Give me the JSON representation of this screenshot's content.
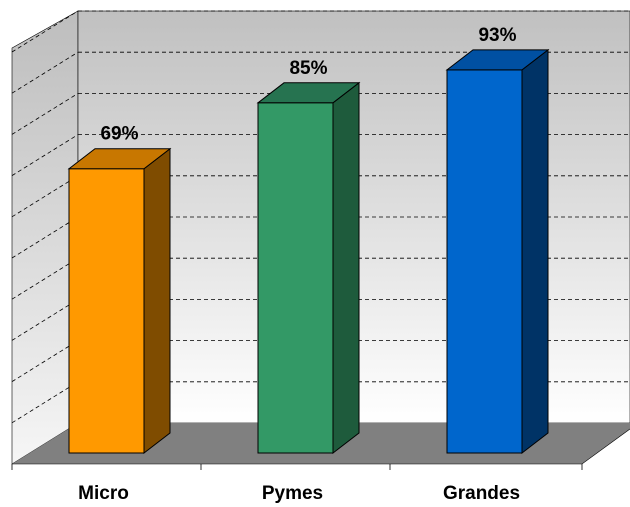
{
  "chart_data": {
    "type": "bar",
    "categories": [
      "Micro",
      "Pymes",
      "Grandes"
    ],
    "values": [
      69,
      85,
      93
    ],
    "value_labels": [
      "69%",
      "85%",
      "93%"
    ],
    "ylim": [
      0,
      100
    ],
    "grid": true,
    "legend": "none",
    "style": "3d-column",
    "colors": {
      "Micro": {
        "front": "#FF9900",
        "top": "#C87700",
        "side": "#7F4C00"
      },
      "Pymes": {
        "front": "#339966",
        "top": "#267350",
        "side": "#1E5B3C"
      },
      "Grandes": {
        "front": "#0066CC",
        "top": "#0050A2",
        "side": "#003366"
      },
      "floor": "#808080",
      "wall_top": "#C0C0C0",
      "wall_bottom": "#FFFFFF"
    }
  }
}
